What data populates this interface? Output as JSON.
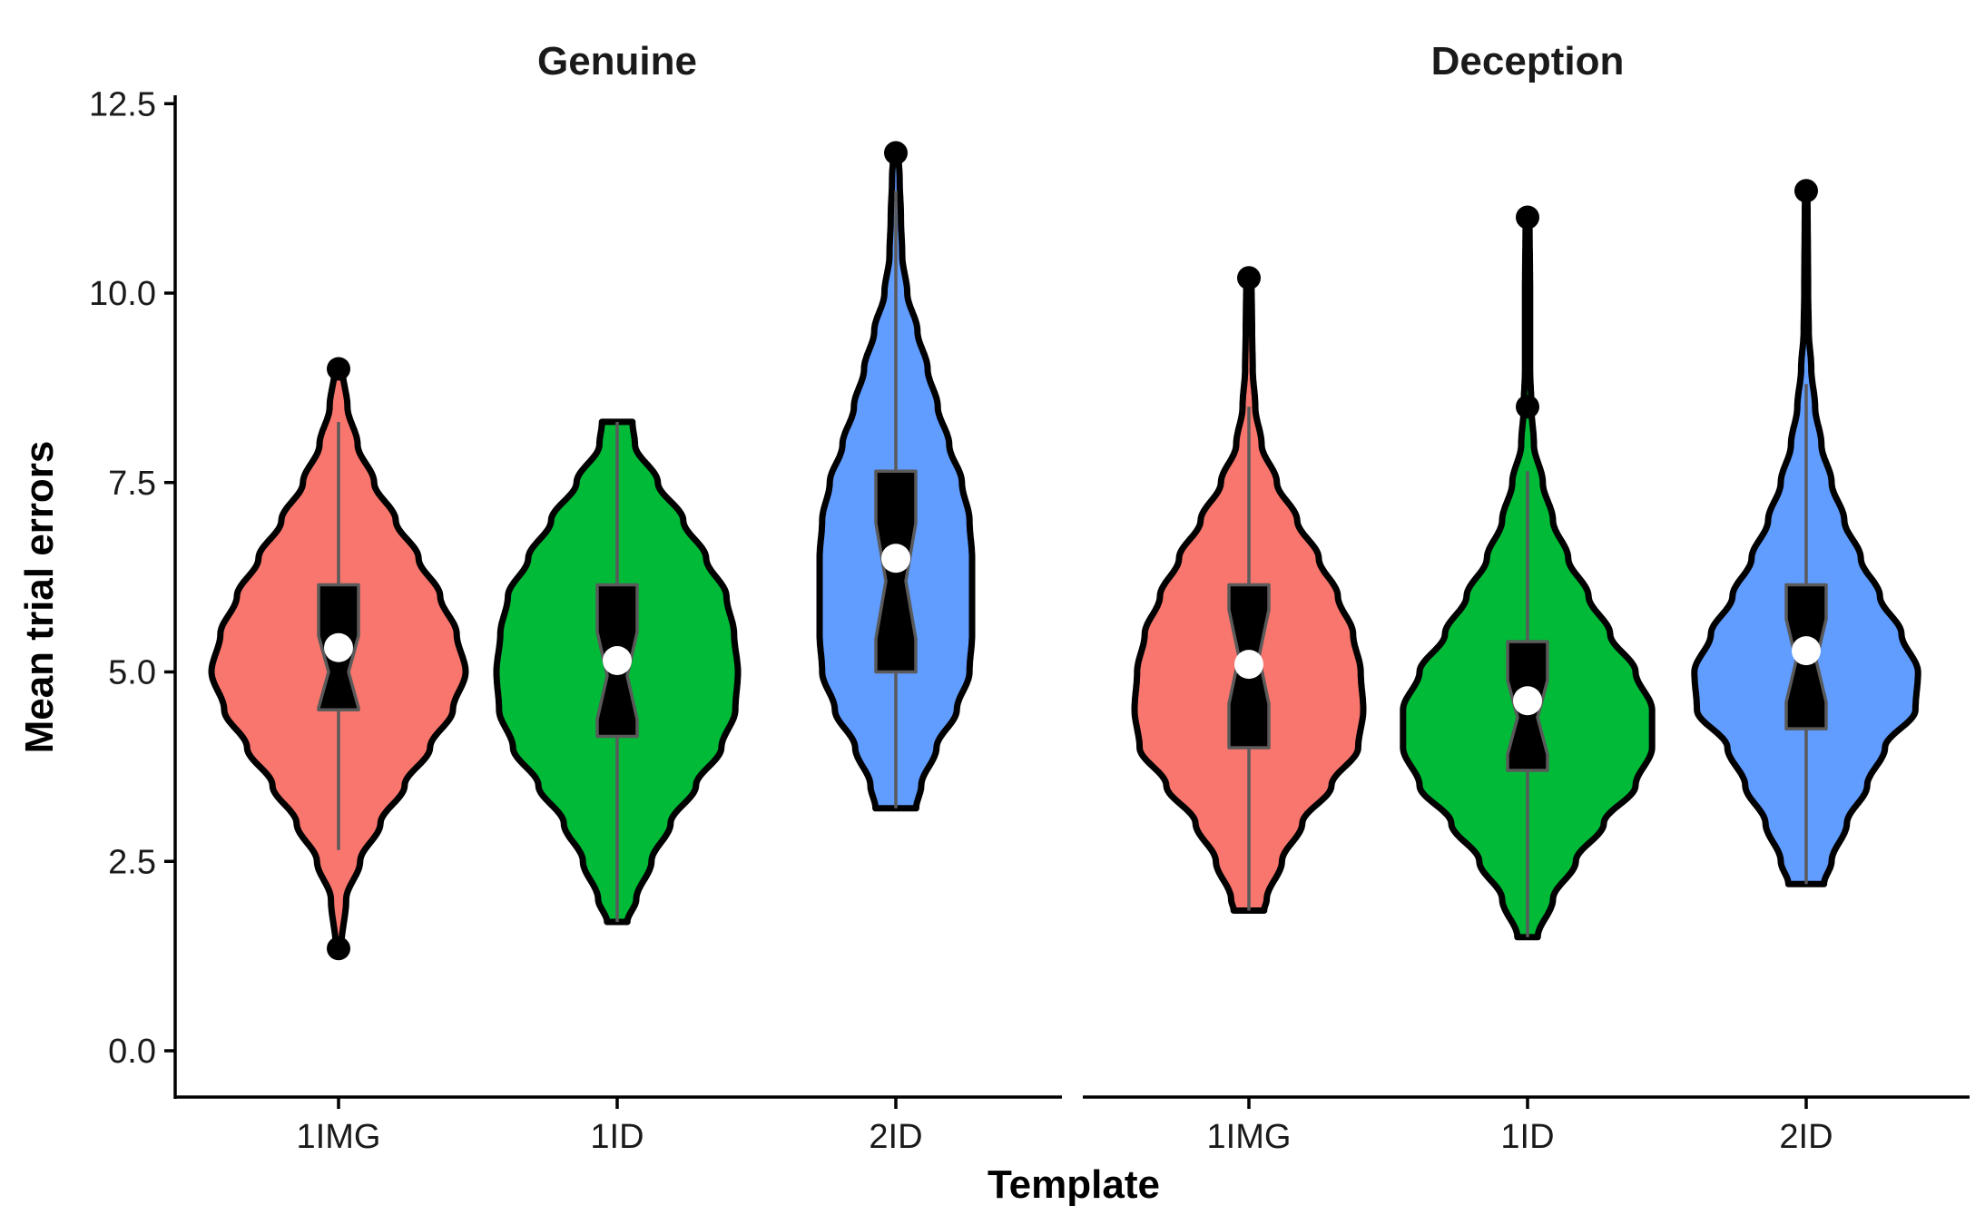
{
  "chart_data": {
    "type": "violin",
    "ylabel": "Mean trial errors",
    "xlabel": "Template",
    "ylim": [
      0,
      12.5
    ],
    "y_ticks": [
      0.0,
      2.5,
      5.0,
      7.5,
      10.0,
      12.5
    ],
    "y_tick_labels": [
      "0.0",
      "2.5",
      "5.0",
      "7.5",
      "10.0",
      "12.5"
    ],
    "grid": false,
    "legend": "none",
    "categories": [
      "1IMG",
      "1ID",
      "2ID"
    ],
    "colors": {
      "1IMG": "#F8766D",
      "1ID": "#00BA38",
      "2ID": "#619CFF"
    },
    "panels": [
      {
        "title": "Genuine",
        "groups": [
          {
            "template": "1IMG",
            "min": 1.35,
            "q1": 4.5,
            "median": 5.0,
            "q3": 6.15,
            "max": 9.0,
            "whisker_low": 2.65,
            "whisker_high": 8.3,
            "mean": 5.32,
            "outliers": [
              1.35,
              9.0
            ],
            "density": [
              [
                1.35,
                0.02
              ],
              [
                2.0,
                0.06
              ],
              [
                2.5,
                0.17
              ],
              [
                3.0,
                0.33
              ],
              [
                3.5,
                0.52
              ],
              [
                4.0,
                0.72
              ],
              [
                4.5,
                0.9
              ],
              [
                5.0,
                1.0
              ],
              [
                5.5,
                0.93
              ],
              [
                6.0,
                0.8
              ],
              [
                6.5,
                0.63
              ],
              [
                7.0,
                0.45
              ],
              [
                7.5,
                0.28
              ],
              [
                8.0,
                0.15
              ],
              [
                8.5,
                0.07
              ],
              [
                9.0,
                0.03
              ]
            ]
          },
          {
            "template": "1ID",
            "min": 1.7,
            "q1": 4.15,
            "median": 4.95,
            "q3": 6.15,
            "max": 8.3,
            "whisker_low": 1.7,
            "whisker_high": 8.3,
            "mean": 5.15,
            "outliers": [],
            "density": [
              [
                1.7,
                0.08
              ],
              [
                2.0,
                0.15
              ],
              [
                2.5,
                0.27
              ],
              [
                3.0,
                0.42
              ],
              [
                3.5,
                0.62
              ],
              [
                4.0,
                0.82
              ],
              [
                4.5,
                0.93
              ],
              [
                5.0,
                0.95
              ],
              [
                5.5,
                0.92
              ],
              [
                6.0,
                0.86
              ],
              [
                6.5,
                0.7
              ],
              [
                7.0,
                0.52
              ],
              [
                7.5,
                0.32
              ],
              [
                8.0,
                0.14
              ],
              [
                8.3,
                0.12
              ]
            ]
          },
          {
            "template": "2ID",
            "min": 3.2,
            "q1": 5.0,
            "median": 6.2,
            "q3": 7.65,
            "max": 11.85,
            "whisker_low": 3.2,
            "whisker_high": 11.35,
            "mean": 6.5,
            "outliers": [
              11.85
            ],
            "density": [
              [
                3.2,
                0.16
              ],
              [
                3.5,
                0.2
              ],
              [
                4.0,
                0.32
              ],
              [
                4.5,
                0.48
              ],
              [
                5.0,
                0.58
              ],
              [
                5.5,
                0.6
              ],
              [
                6.0,
                0.6
              ],
              [
                6.5,
                0.6
              ],
              [
                7.0,
                0.58
              ],
              [
                7.5,
                0.52
              ],
              [
                8.0,
                0.42
              ],
              [
                8.5,
                0.33
              ],
              [
                9.0,
                0.25
              ],
              [
                9.5,
                0.17
              ],
              [
                10.0,
                0.09
              ],
              [
                10.5,
                0.05
              ],
              [
                11.0,
                0.04
              ],
              [
                11.5,
                0.03
              ],
              [
                11.85,
                0.02
              ]
            ]
          }
        ]
      },
      {
        "title": "Deception",
        "groups": [
          {
            "template": "1IMG",
            "min": 1.85,
            "q1": 4.0,
            "median": 5.2,
            "q3": 6.15,
            "max": 10.2,
            "whisker_low": 1.85,
            "whisker_high": 8.5,
            "mean": 5.1,
            "outliers": [
              10.2
            ],
            "density": [
              [
                1.85,
                0.12
              ],
              [
                2.0,
                0.14
              ],
              [
                2.5,
                0.26
              ],
              [
                3.0,
                0.42
              ],
              [
                3.5,
                0.65
              ],
              [
                4.0,
                0.86
              ],
              [
                4.5,
                0.9
              ],
              [
                5.0,
                0.88
              ],
              [
                5.5,
                0.82
              ],
              [
                6.0,
                0.7
              ],
              [
                6.5,
                0.55
              ],
              [
                7.0,
                0.38
              ],
              [
                7.5,
                0.22
              ],
              [
                8.0,
                0.1
              ],
              [
                8.5,
                0.05
              ],
              [
                9.0,
                0.03
              ],
              [
                9.5,
                0.025
              ],
              [
                10.2,
                0.02
              ]
            ]
          },
          {
            "template": "1ID",
            "min": 1.5,
            "q1": 3.7,
            "median": 4.4,
            "q3": 5.4,
            "max": 11.0,
            "whisker_low": 1.5,
            "whisker_high": 7.65,
            "mean": 4.62,
            "outliers": [
              8.5,
              11.0
            ],
            "density": [
              [
                1.5,
                0.08
              ],
              [
                2.0,
                0.2
              ],
              [
                2.5,
                0.38
              ],
              [
                3.0,
                0.6
              ],
              [
                3.5,
                0.85
              ],
              [
                4.0,
                0.98
              ],
              [
                4.5,
                0.98
              ],
              [
                5.0,
                0.85
              ],
              [
                5.5,
                0.65
              ],
              [
                6.0,
                0.48
              ],
              [
                6.5,
                0.32
              ],
              [
                7.0,
                0.2
              ],
              [
                7.5,
                0.12
              ],
              [
                8.0,
                0.05
              ],
              [
                8.5,
                0.03
              ],
              [
                9.0,
                0.02
              ],
              [
                10.0,
                0.02
              ],
              [
                11.0,
                0.015
              ]
            ]
          },
          {
            "template": "2ID",
            "min": 2.2,
            "q1": 4.25,
            "median": 5.15,
            "q3": 6.15,
            "max": 11.35,
            "whisker_low": 2.2,
            "whisker_high": 8.8,
            "mean": 5.28,
            "outliers": [
              11.35
            ],
            "density": [
              [
                2.2,
                0.14
              ],
              [
                2.5,
                0.2
              ],
              [
                3.0,
                0.32
              ],
              [
                3.5,
                0.48
              ],
              [
                4.0,
                0.62
              ],
              [
                4.5,
                0.86
              ],
              [
                5.0,
                0.88
              ],
              [
                5.5,
                0.75
              ],
              [
                6.0,
                0.58
              ],
              [
                6.5,
                0.43
              ],
              [
                7.0,
                0.3
              ],
              [
                7.5,
                0.2
              ],
              [
                8.0,
                0.12
              ],
              [
                8.5,
                0.07
              ],
              [
                9.0,
                0.04
              ],
              [
                9.5,
                0.02
              ],
              [
                10.0,
                0.015
              ],
              [
                11.35,
                0.01
              ]
            ]
          }
        ]
      }
    ]
  }
}
